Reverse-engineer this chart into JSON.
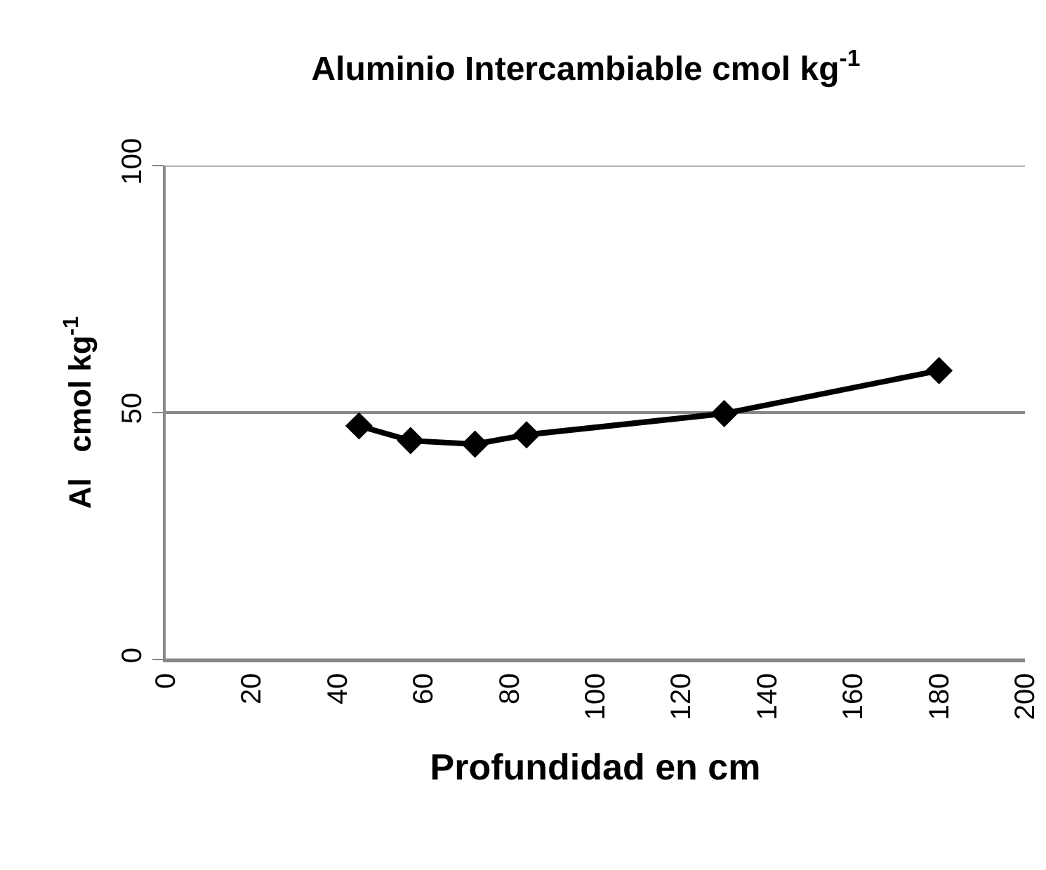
{
  "chart_data": {
    "type": "line",
    "title": "Aluminio Intercambiable cmol kg$^{-1}$",
    "xlabel": "Profundidad en cm",
    "ylabel": "Al   cmol kg$^{-1}$",
    "x": [
      45,
      57,
      72,
      84,
      130,
      180
    ],
    "series": [
      {
        "color": "#000000",
        "values": [
          47.3,
          44.3,
          43.6,
          45.5,
          49.8,
          58.5
        ]
      }
    ],
    "xlim": [
      0,
      200
    ],
    "xticks": [
      0,
      20,
      40,
      60,
      80,
      100,
      120,
      140,
      160,
      180,
      200
    ],
    "ylim": [
      0,
      100
    ],
    "yticks": [
      0,
      50,
      100
    ],
    "grid": "y",
    "marker": "diamond",
    "line_style": "solid"
  }
}
